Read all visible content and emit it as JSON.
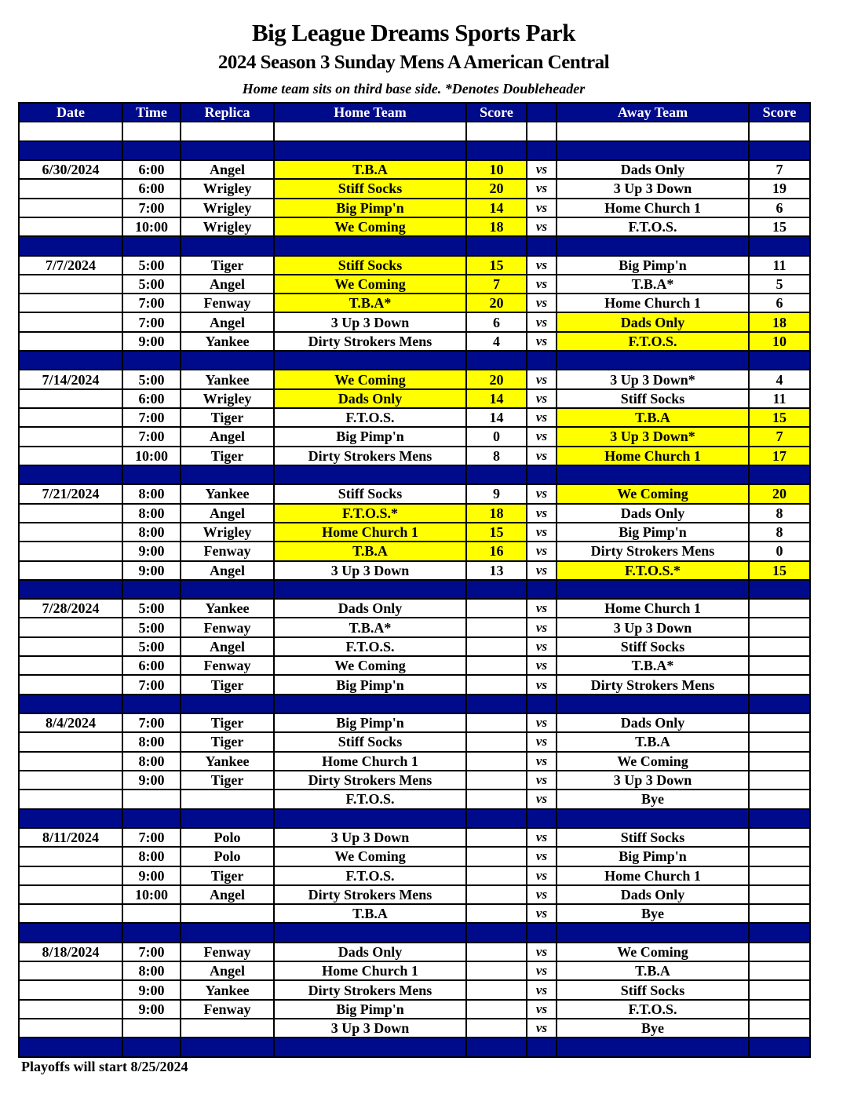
{
  "header": {
    "title": "Big League Dreams Sports Park",
    "subtitle": "2024 Season 3 Sunday Mens A American Central",
    "note": "Home team sits on third base side.  *Denotes Doubleheader"
  },
  "columns": [
    "Date",
    "Time",
    "Replica",
    "Home Team",
    "Score",
    "",
    "Away Team",
    "Score"
  ],
  "colors": {
    "header_bg": "#000b8c",
    "winner_highlight": "#ffff00"
  },
  "schedule": [
    {
      "date": "6/30/2024",
      "games": [
        {
          "time": "6:00",
          "replica": "Angel",
          "home": "T.B.A",
          "home_score": "10",
          "vs": "vs",
          "away": "Dads Only",
          "away_score": "7",
          "winner": "home"
        },
        {
          "time": "6:00",
          "replica": "Wrigley",
          "home": "Stiff Socks",
          "home_score": "20",
          "vs": "vs",
          "away": "3 Up 3 Down",
          "away_score": "19",
          "winner": "home"
        },
        {
          "time": "7:00",
          "replica": "Wrigley",
          "home": "Big Pimp'n",
          "home_score": "14",
          "vs": "vs",
          "away": "Home Church 1",
          "away_score": "6",
          "winner": "home"
        },
        {
          "time": "10:00",
          "replica": "Wrigley",
          "home": "We Coming",
          "home_score": "18",
          "vs": "vs",
          "away": "F.T.O.S.",
          "away_score": "15",
          "winner": "home"
        }
      ]
    },
    {
      "date": "7/7/2024",
      "games": [
        {
          "time": "5:00",
          "replica": "Tiger",
          "home": "Stiff Socks",
          "home_score": "15",
          "vs": "vs",
          "away": "Big Pimp'n",
          "away_score": "11",
          "winner": "home"
        },
        {
          "time": "5:00",
          "replica": "Angel",
          "home": "We Coming",
          "home_score": "7",
          "vs": "vs",
          "away": "T.B.A*",
          "away_score": "5",
          "winner": "home"
        },
        {
          "time": "7:00",
          "replica": "Fenway",
          "home": "T.B.A*",
          "home_score": "20",
          "vs": "vs",
          "away": "Home Church 1",
          "away_score": "6",
          "winner": "home"
        },
        {
          "time": "7:00",
          "replica": "Angel",
          "home": "3 Up 3 Down",
          "home_score": "6",
          "vs": "vs",
          "away": "Dads Only",
          "away_score": "18",
          "winner": "away"
        },
        {
          "time": "9:00",
          "replica": "Yankee",
          "home": "Dirty Strokers Mens",
          "home_score": "4",
          "vs": "vs",
          "away": "F.T.O.S.",
          "away_score": "10",
          "winner": "away"
        }
      ]
    },
    {
      "date": "7/14/2024",
      "games": [
        {
          "time": "5:00",
          "replica": "Yankee",
          "home": "We Coming",
          "home_score": "20",
          "vs": "vs",
          "away": "3 Up 3 Down*",
          "away_score": "4",
          "winner": "home"
        },
        {
          "time": "6:00",
          "replica": "Wrigley",
          "home": "Dads Only",
          "home_score": "14",
          "vs": "vs",
          "away": "Stiff Socks",
          "away_score": "11",
          "winner": "home"
        },
        {
          "time": "7:00",
          "replica": "Tiger",
          "home": "F.T.O.S.",
          "home_score": "14",
          "vs": "vs",
          "away": "T.B.A",
          "away_score": "15",
          "winner": "away"
        },
        {
          "time": "7:00",
          "replica": "Angel",
          "home": "Big Pimp'n",
          "home_score": "0",
          "vs": "vs",
          "away": "3 Up 3 Down*",
          "away_score": "7",
          "winner": "away"
        },
        {
          "time": "10:00",
          "replica": "Tiger",
          "home": "Dirty Strokers Mens",
          "home_score": "8",
          "vs": "vs",
          "away": "Home Church 1",
          "away_score": "17",
          "winner": "away"
        }
      ]
    },
    {
      "date": "7/21/2024",
      "games": [
        {
          "time": "8:00",
          "replica": "Yankee",
          "home": "Stiff Socks",
          "home_score": "9",
          "vs": "vs",
          "away": "We Coming",
          "away_score": "20",
          "winner": "away"
        },
        {
          "time": "8:00",
          "replica": "Angel",
          "home": "F.T.O.S.*",
          "home_score": "18",
          "vs": "vs",
          "away": "Dads Only",
          "away_score": "8",
          "winner": "home"
        },
        {
          "time": "8:00",
          "replica": "Wrigley",
          "home": "Home Church 1",
          "home_score": "15",
          "vs": "vs",
          "away": "Big Pimp'n",
          "away_score": "8",
          "winner": "home"
        },
        {
          "time": "9:00",
          "replica": "Fenway",
          "home": "T.B.A",
          "home_score": "16",
          "vs": "vs",
          "away": "Dirty Strokers Mens",
          "away_score": "0",
          "winner": "home"
        },
        {
          "time": "9:00",
          "replica": "Angel",
          "home": "3 Up 3 Down",
          "home_score": "13",
          "vs": "vs",
          "away": "F.T.O.S.*",
          "away_score": "15",
          "winner": "away"
        }
      ]
    },
    {
      "date": "7/28/2024",
      "games": [
        {
          "time": "5:00",
          "replica": "Yankee",
          "home": "Dads Only",
          "home_score": "",
          "vs": "vs",
          "away": "Home Church 1",
          "away_score": "",
          "winner": null
        },
        {
          "time": "5:00",
          "replica": "Fenway",
          "home": "T.B.A*",
          "home_score": "",
          "vs": "vs",
          "away": "3 Up 3 Down",
          "away_score": "",
          "winner": null
        },
        {
          "time": "5:00",
          "replica": "Angel",
          "home": "F.T.O.S.",
          "home_score": "",
          "vs": "vs",
          "away": "Stiff Socks",
          "away_score": "",
          "winner": null
        },
        {
          "time": "6:00",
          "replica": "Fenway",
          "home": "We Coming",
          "home_score": "",
          "vs": "vs",
          "away": "T.B.A*",
          "away_score": "",
          "winner": null
        },
        {
          "time": "7:00",
          "replica": "Tiger",
          "home": "Big Pimp'n",
          "home_score": "",
          "vs": "vs",
          "away": "Dirty Strokers Mens",
          "away_score": "",
          "winner": null
        }
      ]
    },
    {
      "date": "8/4/2024",
      "games": [
        {
          "time": "7:00",
          "replica": "Tiger",
          "home": "Big Pimp'n",
          "home_score": "",
          "vs": "vs",
          "away": "Dads Only",
          "away_score": "",
          "winner": null
        },
        {
          "time": "8:00",
          "replica": "Tiger",
          "home": "Stiff Socks",
          "home_score": "",
          "vs": "vs",
          "away": "T.B.A",
          "away_score": "",
          "winner": null
        },
        {
          "time": "8:00",
          "replica": "Yankee",
          "home": "Home Church 1",
          "home_score": "",
          "vs": "vs",
          "away": "We Coming",
          "away_score": "",
          "winner": null
        },
        {
          "time": "9:00",
          "replica": "Tiger",
          "home": "Dirty Strokers Mens",
          "home_score": "",
          "vs": "vs",
          "away": "3 Up 3 Down",
          "away_score": "",
          "winner": null
        },
        {
          "time": "",
          "replica": "",
          "home": "F.T.O.S.",
          "home_score": "",
          "vs": "vs",
          "away": "Bye",
          "away_score": "",
          "winner": null
        }
      ]
    },
    {
      "date": "8/11/2024",
      "games": [
        {
          "time": "7:00",
          "replica": "Polo",
          "home": "3 Up 3 Down",
          "home_score": "",
          "vs": "vs",
          "away": "Stiff Socks",
          "away_score": "",
          "winner": null
        },
        {
          "time": "8:00",
          "replica": "Polo",
          "home": "We Coming",
          "home_score": "",
          "vs": "vs",
          "away": "Big Pimp'n",
          "away_score": "",
          "winner": null
        },
        {
          "time": "9:00",
          "replica": "Tiger",
          "home": "F.T.O.S.",
          "home_score": "",
          "vs": "vs",
          "away": "Home Church 1",
          "away_score": "",
          "winner": null
        },
        {
          "time": "10:00",
          "replica": "Angel",
          "home": "Dirty Strokers Mens",
          "home_score": "",
          "vs": "vs",
          "away": "Dads Only",
          "away_score": "",
          "winner": null
        },
        {
          "time": "",
          "replica": "",
          "home": "T.B.A",
          "home_score": "",
          "vs": "vs",
          "away": "Bye",
          "away_score": "",
          "winner": null
        }
      ]
    },
    {
      "date": "8/18/2024",
      "games": [
        {
          "time": "7:00",
          "replica": "Fenway",
          "home": "Dads Only",
          "home_score": "",
          "vs": "vs",
          "away": "We Coming",
          "away_score": "",
          "winner": null
        },
        {
          "time": "8:00",
          "replica": "Angel",
          "home": "Home Church 1",
          "home_score": "",
          "vs": "vs",
          "away": "T.B.A",
          "away_score": "",
          "winner": null
        },
        {
          "time": "9:00",
          "replica": "Yankee",
          "home": "Dirty Strokers Mens",
          "home_score": "",
          "vs": "vs",
          "away": "Stiff Socks",
          "away_score": "",
          "winner": null
        },
        {
          "time": "9:00",
          "replica": "Fenway",
          "home": "Big Pimp'n",
          "home_score": "",
          "vs": "vs",
          "away": "F.T.O.S.",
          "away_score": "",
          "winner": null
        },
        {
          "time": "",
          "replica": "",
          "home": "3 Up 3 Down",
          "home_score": "",
          "vs": "vs",
          "away": "Bye",
          "away_score": "",
          "winner": null
        }
      ]
    }
  ],
  "footer": "Playoffs will start 8/25/2024"
}
